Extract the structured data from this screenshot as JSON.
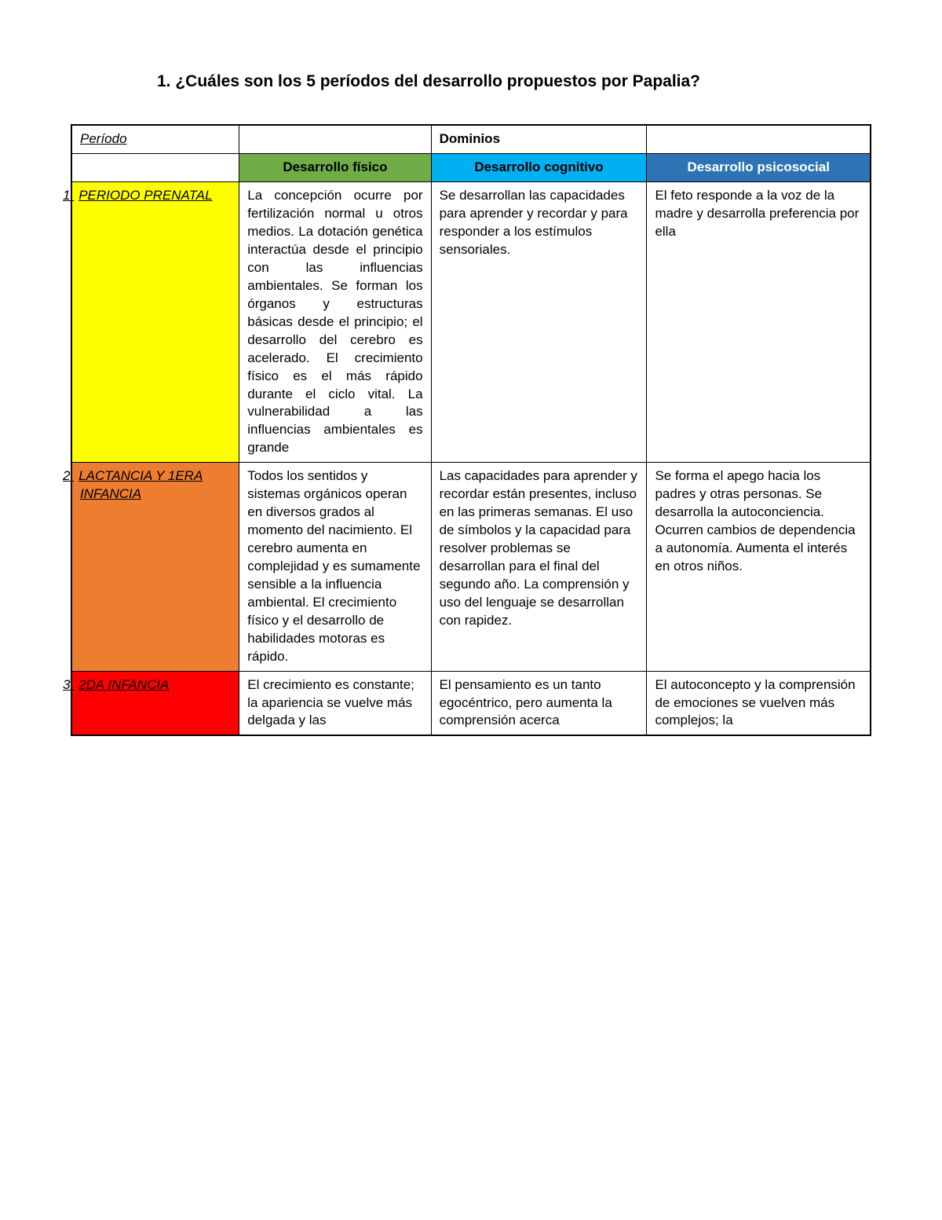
{
  "heading": "1. ¿Cuáles son los 5 períodos del desarrollo propuestos por Papalia?",
  "headers": {
    "periodo": "Período",
    "dominios": "Dominios",
    "fisico": "Desarrollo físico",
    "cognitivo": "Desarrollo cognitivo",
    "psicosocial": "Desarrollo psicosocial"
  },
  "colors": {
    "fisico_bg": "#70ad47",
    "cognitivo_bg": "#00b0f0",
    "psicosocial_bg": "#2e74b5",
    "row1_bg": "#ffff00",
    "row2_bg": "#ed7d31",
    "row3_bg": "#ff0000",
    "border": "#000000",
    "text": "#000000"
  },
  "rows": [
    {
      "num": "1.",
      "label": "PERIODO PRENATAL",
      "fisico": "La concepción ocurre por fertilización normal u otros medios. La dotación genética interactúa desde el principio con las influencias ambientales. Se forman los órganos y estructuras básicas desde el principio; el desarrollo del cerebro es acelerado. El crecimiento físico es el más rápido durante el ciclo vital. La vulnerabilidad a las influencias ambientales es grande",
      "cognitivo": "Se desarrollan las capacidades para aprender y recordar y para responder a los estímulos sensoriales.",
      "psicosocial": "El feto responde a la voz de la madre y desarrolla preferencia por ella"
    },
    {
      "num": "2.",
      "label": "LACTANCIA Y 1ERA INFANCIA",
      "fisico": "Todos los sentidos y sistemas orgánicos operan en diversos grados al momento del nacimiento. El cerebro aumenta en complejidad y es sumamente sensible a la influencia ambiental. El crecimiento físico y el desarrollo de habilidades motoras es rápido.",
      "cognitivo": "Las capacidades para aprender y recordar están presentes, incluso en las primeras semanas. El uso de símbolos y la capacidad para resolver problemas se desarrollan para el final del segundo año. La comprensión y uso del lenguaje se desarrollan con rapidez.",
      "psicosocial": "Se forma el apego hacia los padres y otras personas. Se desarrolla la autoconciencia. Ocurren cambios de dependencia a autonomía. Aumenta el interés en otros niños."
    },
    {
      "num": "3.",
      "label": "2DA INFANCIA",
      "fisico": "El crecimiento es constante; la apariencia se vuelve más delgada y las",
      "cognitivo": "El pensamiento es un tanto egocéntrico, pero aumenta la comprensión acerca",
      "psicosocial": "El autoconcepto y la comprensión de emociones se vuelven más complejos; la"
    }
  ]
}
